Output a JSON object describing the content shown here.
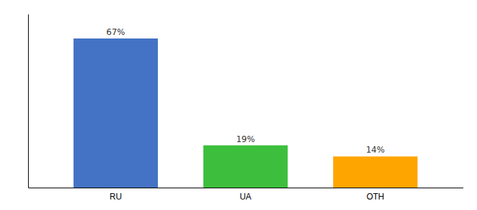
{
  "chart_data": {
    "type": "bar",
    "categories": [
      "RU",
      "UA",
      "OTH"
    ],
    "values": [
      67,
      19,
      14
    ],
    "value_labels": [
      "67%",
      "19%",
      "14%"
    ],
    "colors": [
      "#4472C4",
      "#3DBF3D",
      "#FFA500"
    ],
    "ylim": [
      0,
      78
    ],
    "data_labels": true,
    "tick_labels": "x"
  }
}
